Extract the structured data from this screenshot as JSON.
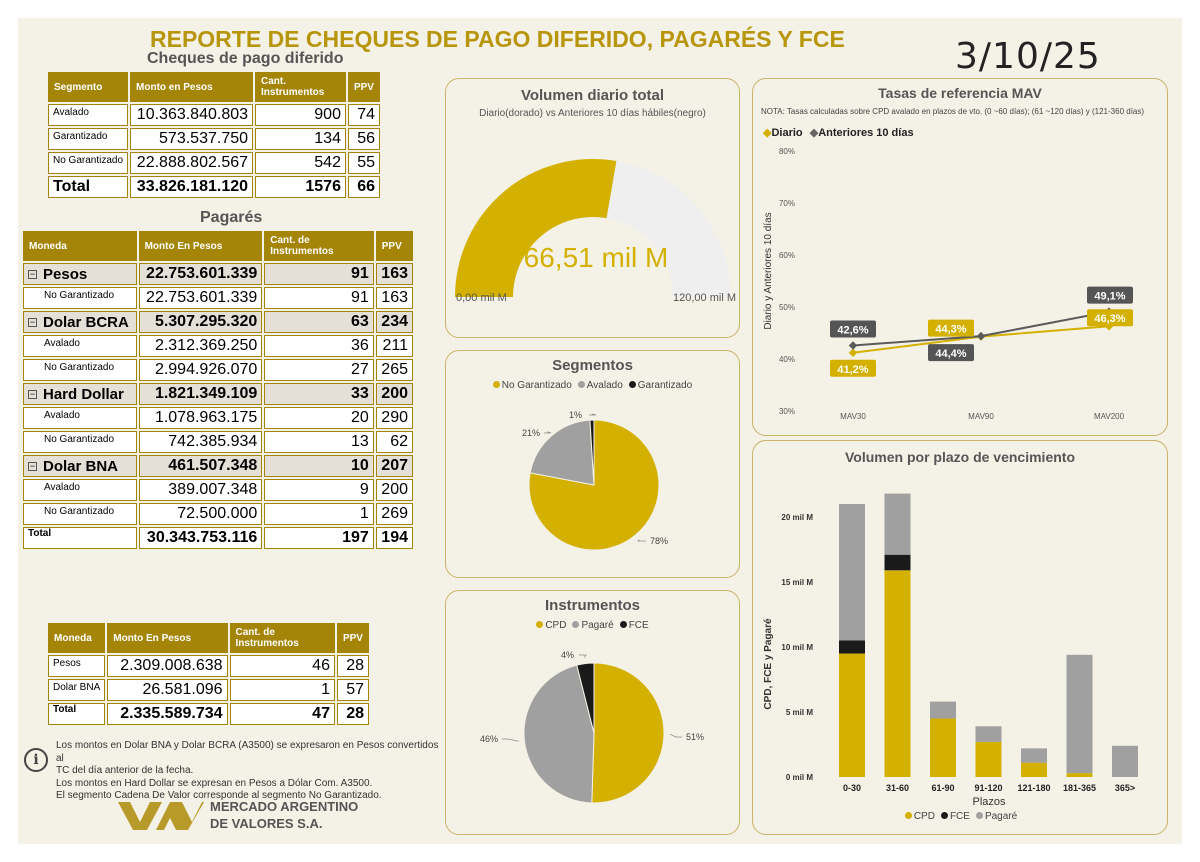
{
  "header": {
    "title": "REPORTE DE CHEQUES DE PAGO DIFERIDO, PAGARÉS Y FCE",
    "date": "3/10/25"
  },
  "colors": {
    "gold": "#d4b000",
    "gray": "#a0a0a0",
    "black": "#1a1a1a",
    "header_bg": "#a58508"
  },
  "cpd": {
    "title": "Cheques de pago diferido",
    "headers": [
      "Segmento",
      "Monto en Pesos",
      "Cant. Instrumentos",
      "PPV"
    ],
    "rows": [
      {
        "label": "Avalado",
        "monto": "10.363.840.803",
        "cant": "900",
        "ppv": "74"
      },
      {
        "label": "Garantizado",
        "monto": "573.537.750",
        "cant": "134",
        "ppv": "56"
      },
      {
        "label": "No Garantizado",
        "monto": "22.888.802.567",
        "cant": "542",
        "ppv": "55"
      }
    ],
    "total": {
      "label": "Total",
      "monto": "33.826.181.120",
      "cant": "1576",
      "ppv": "66"
    }
  },
  "pagares": {
    "title": "Pagarés",
    "headers": [
      "Moneda",
      "Monto En Pesos",
      "Cant. de Instrumentos",
      "PPV"
    ],
    "rows": [
      {
        "label": "Pesos",
        "monto": "22.753.601.339",
        "cant": "91",
        "ppv": "163",
        "group": true
      },
      {
        "label": "No Garantizado",
        "monto": "22.753.601.339",
        "cant": "91",
        "ppv": "163"
      },
      {
        "label": "Dolar BCRA",
        "monto": "5.307.295.320",
        "cant": "63",
        "ppv": "234",
        "group": true
      },
      {
        "label": "Avalado",
        "monto": "2.312.369.250",
        "cant": "36",
        "ppv": "211"
      },
      {
        "label": "No Garantizado",
        "monto": "2.994.926.070",
        "cant": "27",
        "ppv": "265"
      },
      {
        "label": "Hard Dollar",
        "monto": "1.821.349.109",
        "cant": "33",
        "ppv": "200",
        "group": true
      },
      {
        "label": "Avalado",
        "monto": "1.078.963.175",
        "cant": "20",
        "ppv": "290"
      },
      {
        "label": "No Garantizado",
        "monto": "742.385.934",
        "cant": "13",
        "ppv": "62"
      },
      {
        "label": "Dolar BNA",
        "monto": "461.507.348",
        "cant": "10",
        "ppv": "207",
        "group": true
      },
      {
        "label": "Avalado",
        "monto": "389.007.348",
        "cant": "9",
        "ppv": "200"
      },
      {
        "label": "No Garantizado",
        "monto": "72.500.000",
        "cant": "1",
        "ppv": "269"
      }
    ],
    "total": {
      "label": "Total",
      "monto": "30.343.753.116",
      "cant": "197",
      "ppv": "194"
    }
  },
  "fce": {
    "headers": [
      "Moneda",
      "Monto En Pesos",
      "Cant. de Instrumentos",
      "PPV"
    ],
    "rows": [
      {
        "label": "Pesos",
        "monto": "2.309.008.638",
        "cant": "46",
        "ppv": "28"
      },
      {
        "label": "Dolar BNA",
        "monto": "26.581.096",
        "cant": "1",
        "ppv": "57"
      }
    ],
    "total": {
      "label": "Total",
      "monto": "2.335.589.734",
      "cant": "47",
      "ppv": "28"
    }
  },
  "notes": [
    "Los montos en Dolar BNA y Dolar BCRA (A3500) se expresaron en Pesos convertidos al",
    "TC del día anterior de la fecha.",
    "Los montos en Hard Dollar se expresan en Pesos a Dólar Com. A3500.",
    "El segmento Cadena De Valor corresponde al segmento No Garantizado."
  ],
  "logo": {
    "line1": "MERCADO ARGENTINO",
    "line2": "DE VALORES S.A."
  },
  "chart_data": [
    {
      "type": "gauge",
      "title": "Volumen diario total",
      "subtitle": "Diario(dorado) vs Anteriores 10 días hábiles(negro)",
      "value": 66.51,
      "min": 0,
      "max": 120,
      "value_label": "66,51 mil M",
      "min_label": "0,00 mil M",
      "max_label": "120,00 mil M"
    },
    {
      "type": "pie",
      "title": "Segmentos",
      "series": [
        {
          "name": "No Garantizado",
          "value": 78,
          "label": "78%"
        },
        {
          "name": "Avalado",
          "value": 21,
          "label": "21%"
        },
        {
          "name": "Garantizado",
          "value": 1,
          "label": "1%"
        }
      ]
    },
    {
      "type": "pie",
      "title": "Instrumentos",
      "series": [
        {
          "name": "CPD",
          "value": 51,
          "label": "51%"
        },
        {
          "name": "Pagaré",
          "value": 46,
          "label": "46%"
        },
        {
          "name": "FCE",
          "value": 4,
          "label": "4%"
        }
      ]
    },
    {
      "type": "line",
      "title": "Tasas de referencia MAV",
      "note": "NOTA: Tasas calculadas sobre CPD avalado en plazos de vto. (0 ~60 días); (61 ~120 días) y (121-360 días)",
      "ylabel": "Diario y Anteriores 10 días",
      "categories": [
        "MAV30",
        "MAV90",
        "MAV200"
      ],
      "yticks": [
        "30%",
        "40%",
        "50%",
        "60%",
        "70%",
        "80%"
      ],
      "ylim": [
        30,
        80
      ],
      "series": [
        {
          "name": "Diario",
          "values": [
            41.2,
            44.3,
            46.3
          ],
          "labels": [
            "41,2%",
            "44,3%",
            "46,3%"
          ]
        },
        {
          "name": "Anteriores 10 días",
          "values": [
            42.6,
            44.4,
            49.1
          ],
          "labels": [
            "42,6%",
            "44,4%",
            "49,1%"
          ]
        }
      ]
    },
    {
      "type": "bar",
      "title": "Volumen por plazo de vencimiento",
      "xlabel": "Plazos",
      "ylabel": "CPD, FCE y Pagaré",
      "categories": [
        "0-30",
        "31-60",
        "61-90",
        "91-120",
        "121-180",
        "181-365",
        "365>"
      ],
      "yticks": [
        "0 mil M",
        "5 mil M",
        "10 mil M",
        "15 mil M",
        "20 mil M"
      ],
      "ylim": [
        0,
        22
      ],
      "series": [
        {
          "name": "CPD",
          "values": [
            9.5,
            15.9,
            4.5,
            2.7,
            1.1,
            0.3,
            0
          ]
        },
        {
          "name": "FCE",
          "values": [
            1.0,
            1.2,
            0,
            0,
            0,
            0,
            0
          ]
        },
        {
          "name": "Pagaré",
          "values": [
            10.5,
            4.7,
            1.3,
            1.2,
            1.1,
            9.1,
            2.4
          ]
        }
      ]
    }
  ]
}
